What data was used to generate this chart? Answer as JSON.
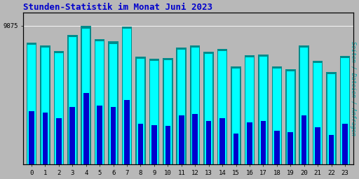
{
  "title": "Stunden-Statistik im Monat Juni 2023",
  "ylabel": "Seiten / Dateien / Anfragen",
  "hours": [
    0,
    1,
    2,
    3,
    4,
    5,
    6,
    7,
    8,
    9,
    10,
    11,
    12,
    13,
    14,
    15,
    16,
    17,
    18,
    19,
    20,
    21,
    22,
    23
  ],
  "seiten": [
    8700,
    8500,
    8100,
    9200,
    9850,
    8900,
    8750,
    9800,
    7700,
    7550,
    7600,
    8350,
    8500,
    8050,
    8250,
    7000,
    7800,
    7850,
    7000,
    6800,
    8500,
    7400,
    6600,
    7750
  ],
  "dateien": [
    8550,
    8350,
    7950,
    9050,
    9650,
    8750,
    8600,
    9650,
    7550,
    7400,
    7450,
    8200,
    8350,
    7900,
    8100,
    6850,
    7650,
    7700,
    6850,
    6650,
    8350,
    7250,
    6450,
    7600
  ],
  "anfragen": [
    3800,
    3700,
    3300,
    4100,
    5100,
    4200,
    4100,
    4600,
    2900,
    2800,
    2750,
    3500,
    3600,
    3100,
    3300,
    2200,
    3000,
    3100,
    2400,
    2300,
    3500,
    2650,
    2100,
    2900
  ],
  "color_seiten": "#008B8B",
  "color_dateien": "#00FFFF",
  "color_anfragen": "#0000CD",
  "background_chart": "#B8B8B8",
  "background_fig": "#B8B8B8",
  "title_color": "#0000CC",
  "ylabel_color": "#00AAAA",
  "ytick_label": "9875",
  "ylim": [
    0,
    10800
  ],
  "yticks": [
    9875
  ],
  "bar_width": 0.75
}
